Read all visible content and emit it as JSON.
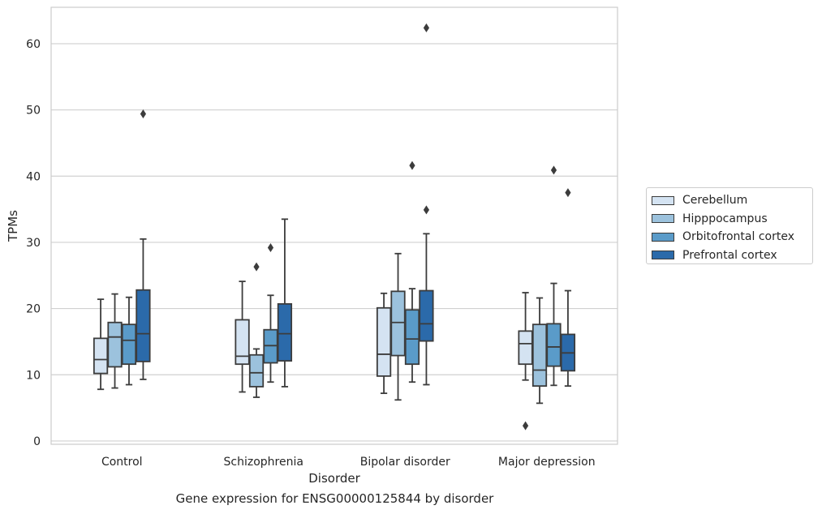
{
  "chart_data": {
    "type": "box",
    "xlabel": "Disorder",
    "ylabel": "TPMs",
    "ylim": [
      -0.5,
      65.5
    ],
    "yticks": [
      0,
      10,
      20,
      30,
      40,
      50,
      60
    ],
    "grid": true,
    "legend_position": "right",
    "categories": [
      "Control",
      "Schizophrenia",
      "Bipolar disorder",
      "Major depression"
    ],
    "series": [
      {
        "name": "Cerebellum",
        "color": "#d4e3f2",
        "boxes": [
          {
            "whislo": 7.8,
            "q1": 10.2,
            "med": 12.3,
            "q3": 15.5,
            "whishi": 21.4,
            "fliers": []
          },
          {
            "whislo": 7.4,
            "q1": 11.6,
            "med": 12.8,
            "q3": 18.3,
            "whishi": 24.1,
            "fliers": []
          },
          {
            "whislo": 7.2,
            "q1": 9.8,
            "med": 13.1,
            "q3": 20.1,
            "whishi": 22.3,
            "fliers": []
          },
          {
            "whislo": 9.2,
            "q1": 11.6,
            "med": 14.7,
            "q3": 16.6,
            "whishi": 22.4,
            "fliers": [
              2.3
            ]
          }
        ]
      },
      {
        "name": "Hipppocampus",
        "color": "#9cc2dd",
        "boxes": [
          {
            "whislo": 8.0,
            "q1": 11.2,
            "med": 15.7,
            "q3": 17.9,
            "whishi": 22.2,
            "fliers": []
          },
          {
            "whislo": 6.6,
            "q1": 8.2,
            "med": 10.3,
            "q3": 13.0,
            "whishi": 13.9,
            "fliers": [
              26.3
            ]
          },
          {
            "whislo": 6.2,
            "q1": 12.9,
            "med": 17.9,
            "q3": 22.6,
            "whishi": 28.3,
            "fliers": []
          },
          {
            "whislo": 5.7,
            "q1": 8.3,
            "med": 10.7,
            "q3": 17.6,
            "whishi": 21.6,
            "fliers": []
          }
        ]
      },
      {
        "name": "Orbitofrontal cortex",
        "color": "#5a9bc9",
        "boxes": [
          {
            "whislo": 8.5,
            "q1": 11.6,
            "med": 15.2,
            "q3": 17.6,
            "whishi": 21.7,
            "fliers": []
          },
          {
            "whislo": 8.9,
            "q1": 11.8,
            "med": 14.4,
            "q3": 16.8,
            "whishi": 22.0,
            "fliers": [
              29.2
            ]
          },
          {
            "whislo": 8.9,
            "q1": 11.6,
            "med": 15.4,
            "q3": 19.8,
            "whishi": 23.0,
            "fliers": [
              41.6
            ]
          },
          {
            "whislo": 8.4,
            "q1": 11.3,
            "med": 14.2,
            "q3": 17.7,
            "whishi": 23.8,
            "fliers": [
              40.9
            ]
          }
        ]
      },
      {
        "name": "Prefrontal cortex",
        "color": "#2b6aaa",
        "boxes": [
          {
            "whislo": 9.3,
            "q1": 12.0,
            "med": 16.2,
            "q3": 22.8,
            "whishi": 30.5,
            "fliers": [
              49.4
            ]
          },
          {
            "whislo": 8.2,
            "q1": 12.1,
            "med": 16.2,
            "q3": 20.7,
            "whishi": 33.5,
            "fliers": []
          },
          {
            "whislo": 8.5,
            "q1": 15.1,
            "med": 17.7,
            "q3": 22.7,
            "whishi": 31.3,
            "fliers": [
              34.9,
              62.4
            ]
          },
          {
            "whislo": 8.3,
            "q1": 10.6,
            "med": 13.3,
            "q3": 16.1,
            "whishi": 22.7,
            "fliers": [
              37.5
            ]
          }
        ]
      }
    ]
  },
  "caption": "Gene expression for ENSG00000125844 by disorder"
}
